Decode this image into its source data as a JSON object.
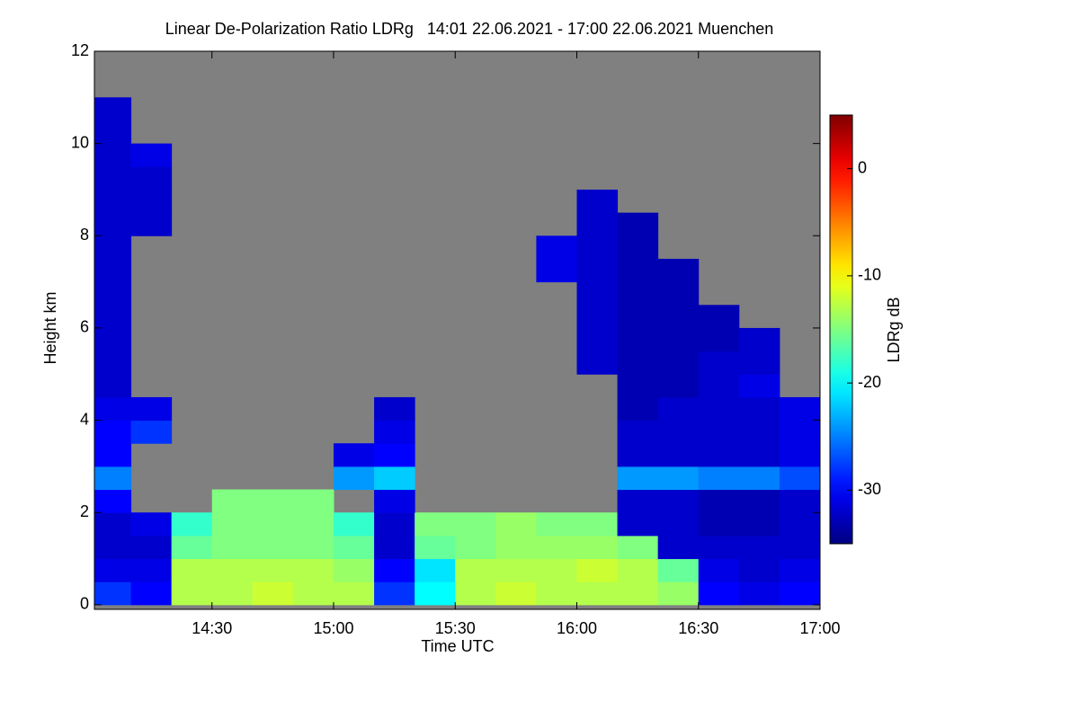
{
  "chart_data": {
    "type": "heatmap",
    "title": "Linear De-Polarization Ratio LDRg   14:01 22.06.2021 - 17:00 22.06.2021 Muenchen",
    "x_label": "Time UTC",
    "y_label": "Height km",
    "colorbar_label": "LDRg dB",
    "nodata_color": "#808080",
    "colormap": "jet",
    "xlim": [
      1,
      180
    ],
    "xticks": [
      {
        "value": 30,
        "label": "14:30"
      },
      {
        "value": 60,
        "label": "15:00"
      },
      {
        "value": 90,
        "label": "15:30"
      },
      {
        "value": 120,
        "label": "16:00"
      },
      {
        "value": 150,
        "label": "16:30"
      },
      {
        "value": 180,
        "label": "17:00"
      }
    ],
    "ylim": [
      -0.1,
      12
    ],
    "yticks": [
      0,
      2,
      4,
      6,
      8,
      10,
      12
    ],
    "clim": [
      -35,
      5
    ],
    "cticks": [
      0,
      -10,
      -20,
      -30
    ],
    "x": [
      5,
      15,
      25,
      35,
      45,
      55,
      65,
      75,
      85,
      95,
      105,
      115,
      125,
      135,
      145,
      155,
      165,
      175
    ],
    "y": [
      0.25,
      0.75,
      1.25,
      1.75,
      2.25,
      2.75,
      3.25,
      3.75,
      4.25,
      4.75,
      5.25,
      5.75,
      6.25,
      6.75,
      7.25,
      7.75,
      8.25,
      8.75,
      9.25,
      9.75,
      10.25,
      10.75,
      11.25,
      11.75
    ],
    "z": [
      [
        -28,
        -30,
        -13,
        -13,
        -12,
        -13,
        -13,
        -28,
        -20,
        -13,
        -12,
        -13,
        -13,
        -13,
        -14,
        -30,
        -31,
        -30
      ],
      [
        -31,
        -31,
        -13,
        -13,
        -13,
        -13,
        -14,
        -30,
        -21,
        -13,
        -13,
        -13,
        -12,
        -13,
        -16,
        -31,
        -32,
        -31
      ],
      [
        -32,
        -32,
        -16,
        -15,
        -15,
        -15,
        -16,
        -32,
        -16,
        -15,
        -14,
        -14,
        -14,
        -15,
        -32,
        -32,
        -32,
        -32
      ],
      [
        -32,
        -31,
        -18,
        -15,
        -15,
        -15,
        -18,
        -32,
        -15,
        -15,
        -14,
        -15,
        -15,
        -32,
        -32,
        -33,
        -33,
        -32
      ],
      [
        -30,
        null,
        null,
        -15,
        -15,
        -15,
        null,
        -31,
        null,
        null,
        null,
        null,
        null,
        -32,
        -32,
        -33,
        -33,
        -32
      ],
      [
        -25,
        null,
        null,
        null,
        null,
        null,
        -24,
        -22,
        null,
        null,
        null,
        null,
        null,
        -24,
        -24,
        -25,
        -25,
        -27
      ],
      [
        -30,
        null,
        null,
        null,
        null,
        null,
        -31,
        -30,
        null,
        null,
        null,
        null,
        null,
        -32,
        -32,
        -32,
        -32,
        -31
      ],
      [
        -30,
        -28,
        null,
        null,
        null,
        null,
        null,
        -31,
        null,
        null,
        null,
        null,
        null,
        -32,
        -32,
        -32,
        -32,
        -31
      ],
      [
        -31,
        -31,
        null,
        null,
        null,
        null,
        null,
        -32,
        null,
        null,
        null,
        null,
        null,
        -33,
        -32,
        -32,
        -32,
        -31
      ],
      [
        -32,
        null,
        null,
        null,
        null,
        null,
        null,
        null,
        null,
        null,
        null,
        null,
        null,
        -33,
        -33,
        -32,
        -31,
        null
      ],
      [
        -32,
        null,
        null,
        null,
        null,
        null,
        null,
        null,
        null,
        null,
        null,
        null,
        -32,
        -33,
        -33,
        -32,
        -32,
        null
      ],
      [
        -32,
        null,
        null,
        null,
        null,
        null,
        null,
        null,
        null,
        null,
        null,
        null,
        -32,
        -33,
        -33,
        -33,
        -32,
        null
      ],
      [
        -32,
        null,
        null,
        null,
        null,
        null,
        null,
        null,
        null,
        null,
        null,
        null,
        -32,
        -33,
        -33,
        -33,
        null,
        null
      ],
      [
        -32,
        null,
        null,
        null,
        null,
        null,
        null,
        null,
        null,
        null,
        null,
        null,
        -32,
        -33,
        -33,
        null,
        null,
        null
      ],
      [
        -32,
        null,
        null,
        null,
        null,
        null,
        null,
        null,
        null,
        null,
        null,
        -31,
        -32,
        -33,
        -33,
        null,
        null,
        null
      ],
      [
        -32,
        null,
        null,
        null,
        null,
        null,
        null,
        null,
        null,
        null,
        null,
        -31,
        -32,
        -33,
        null,
        null,
        null,
        null
      ],
      [
        -32,
        -32,
        null,
        null,
        null,
        null,
        null,
        null,
        null,
        null,
        null,
        null,
        -32,
        -33,
        null,
        null,
        null,
        null
      ],
      [
        -32,
        -32,
        null,
        null,
        null,
        null,
        null,
        null,
        null,
        null,
        null,
        null,
        -32,
        null,
        null,
        null,
        null,
        null
      ],
      [
        -32,
        -32,
        null,
        null,
        null,
        null,
        null,
        null,
        null,
        null,
        null,
        null,
        null,
        null,
        null,
        null,
        null,
        null
      ],
      [
        -32,
        -31,
        null,
        null,
        null,
        null,
        null,
        null,
        null,
        null,
        null,
        null,
        null,
        null,
        null,
        null,
        null,
        null
      ],
      [
        -32,
        null,
        null,
        null,
        null,
        null,
        null,
        null,
        null,
        null,
        null,
        null,
        null,
        null,
        null,
        null,
        null,
        null
      ],
      [
        -32,
        null,
        null,
        null,
        null,
        null,
        null,
        null,
        null,
        null,
        null,
        null,
        null,
        null,
        null,
        null,
        null,
        null
      ],
      [
        null,
        null,
        null,
        null,
        null,
        null,
        null,
        null,
        null,
        null,
        null,
        null,
        null,
        null,
        null,
        null,
        null,
        null
      ],
      [
        null,
        null,
        null,
        null,
        null,
        null,
        null,
        null,
        null,
        null,
        null,
        null,
        null,
        null,
        null,
        null,
        null,
        null
      ]
    ]
  }
}
